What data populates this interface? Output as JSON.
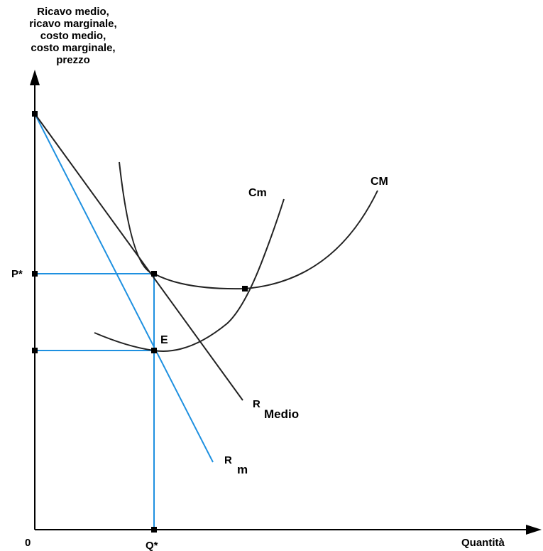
{
  "y_axis_label": [
    "Ricavo medio,",
    "ricavo marginale,",
    "costo medio,",
    "costo marginale,",
    "prezzo"
  ],
  "x_axis_label": "Quantità",
  "origin_label": "0",
  "price_label": "P*",
  "quantity_label": "Q*",
  "equilibrium_label": "E",
  "curves": {
    "marginal_cost": "Cm",
    "average_cost": "CM",
    "average_revenue": {
      "main": "R",
      "sub": "Medio"
    },
    "marginal_revenue": {
      "main": "R",
      "sub": "m"
    }
  },
  "colors": {
    "axis": "#000000",
    "curves": "#222222",
    "revenue_marginal": "#1e90e0",
    "guides": "#1e90e0"
  }
}
